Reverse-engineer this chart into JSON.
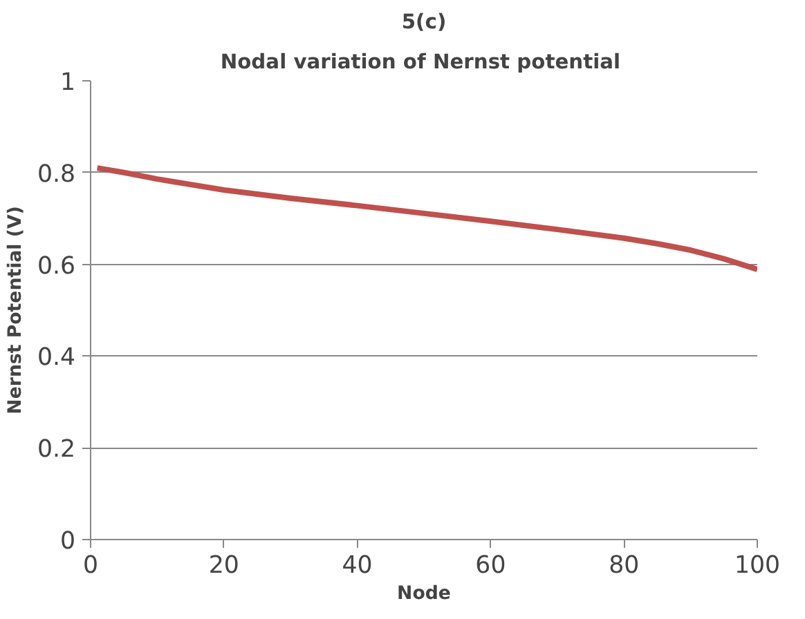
{
  "chart_data": {
    "type": "line",
    "title": "5(c)",
    "subtitle": "Nodal variation  of Nernst potential",
    "xlabel": "Node",
    "ylabel": "Nernst Potential (V)",
    "x": [
      1,
      5,
      10,
      20,
      30,
      40,
      50,
      60,
      70,
      80,
      85,
      90,
      95,
      100
    ],
    "series": [
      {
        "color": "#c0504d",
        "values": [
          0.81,
          0.8,
          0.786,
          0.762,
          0.744,
          0.728,
          0.711,
          0.694,
          0.676,
          0.657,
          0.645,
          0.631,
          0.612,
          0.589
        ]
      }
    ],
    "xlim": [
      0,
      100
    ],
    "xticks": [
      0,
      20,
      40,
      60,
      80,
      100
    ],
    "ylim": [
      0,
      1
    ],
    "yticks": [
      0,
      0.2,
      0.4,
      0.6,
      0.8,
      1
    ],
    "grid": "y",
    "marker": "none",
    "line_style": "solid"
  }
}
